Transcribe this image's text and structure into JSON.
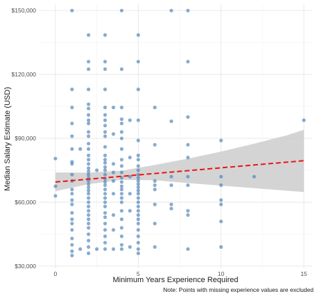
{
  "chart_data": {
    "type": "scatter",
    "title": "",
    "xlabel": "Minimum Years Experience Required",
    "ylabel": "Median Salary Estimate (USD)",
    "note": "Note: Points with missing experience values are excluded",
    "xlim": [
      -1,
      15.5
    ],
    "ylim": [
      29000,
      153000
    ],
    "x_ticks": [
      0,
      5,
      10,
      15
    ],
    "x_tick_labels": [
      "0",
      "5",
      "10",
      "15"
    ],
    "y_ticks": [
      30000,
      60000,
      90000,
      120000,
      150000
    ],
    "y_tick_labels": [
      "$30,000",
      "$60,000",
      "$90,000",
      "$120,000",
      "$150,000"
    ],
    "grid": true,
    "point_color": "#4a7fb5",
    "trend_color": "#ee1111",
    "band_color": "#cccccc",
    "trend": {
      "x": [
        0,
        15
      ],
      "y": [
        69500,
        79500
      ]
    },
    "confidence_band": {
      "x": [
        0,
        2,
        4,
        6,
        8,
        10,
        12,
        14,
        15
      ],
      "lower": [
        65200,
        68500,
        70500,
        70300,
        69000,
        67800,
        66600,
        65400,
        64800
      ],
      "upper": [
        74000,
        73900,
        74800,
        77500,
        80500,
        83800,
        87500,
        91500,
        94000
      ]
    },
    "points": [
      {
        "x": 0,
        "y": 80500
      },
      {
        "x": 0,
        "y": 67500
      },
      {
        "x": 0,
        "y": 63000
      },
      {
        "x": 1,
        "y": 150000
      },
      {
        "x": 1,
        "y": 113000
      },
      {
        "x": 1,
        "y": 104500
      },
      {
        "x": 1,
        "y": 97000
      },
      {
        "x": 1,
        "y": 91000
      },
      {
        "x": 1,
        "y": 85000
      },
      {
        "x": 1,
        "y": 79000
      },
      {
        "x": 1,
        "y": 78000
      },
      {
        "x": 1,
        "y": 73000
      },
      {
        "x": 1,
        "y": 70000
      },
      {
        "x": 1,
        "y": 66000
      },
      {
        "x": 1,
        "y": 64000
      },
      {
        "x": 1,
        "y": 61000
      },
      {
        "x": 1,
        "y": 59000
      },
      {
        "x": 1,
        "y": 55000
      },
      {
        "x": 1,
        "y": 52000
      },
      {
        "x": 1,
        "y": 50000
      },
      {
        "x": 1,
        "y": 47000
      },
      {
        "x": 1,
        "y": 43000
      },
      {
        "x": 1,
        "y": 40000
      },
      {
        "x": 1,
        "y": 37000
      },
      {
        "x": 1,
        "y": 35000
      },
      {
        "x": 1.5,
        "y": 85000
      },
      {
        "x": 1.5,
        "y": 38000
      },
      {
        "x": 2,
        "y": 138500
      },
      {
        "x": 2,
        "y": 126000
      },
      {
        "x": 2,
        "y": 122500
      },
      {
        "x": 2,
        "y": 113000
      },
      {
        "x": 2,
        "y": 106000
      },
      {
        "x": 2,
        "y": 104000
      },
      {
        "x": 2,
        "y": 101000
      },
      {
        "x": 2,
        "y": 98500
      },
      {
        "x": 2,
        "y": 97000
      },
      {
        "x": 2,
        "y": 93000
      },
      {
        "x": 2,
        "y": 91000
      },
      {
        "x": 2,
        "y": 87500
      },
      {
        "x": 2,
        "y": 85000
      },
      {
        "x": 2,
        "y": 82000
      },
      {
        "x": 2,
        "y": 80000
      },
      {
        "x": 2,
        "y": 78000
      },
      {
        "x": 2,
        "y": 76000
      },
      {
        "x": 2,
        "y": 74500
      },
      {
        "x": 2,
        "y": 73000
      },
      {
        "x": 2,
        "y": 71500
      },
      {
        "x": 2,
        "y": 70000
      },
      {
        "x": 2,
        "y": 68500
      },
      {
        "x": 2,
        "y": 67000
      },
      {
        "x": 2,
        "y": 65500
      },
      {
        "x": 2,
        "y": 64000
      },
      {
        "x": 2,
        "y": 62000
      },
      {
        "x": 2,
        "y": 60000
      },
      {
        "x": 2,
        "y": 58000
      },
      {
        "x": 2,
        "y": 56000
      },
      {
        "x": 2,
        "y": 54000
      },
      {
        "x": 2,
        "y": 52000
      },
      {
        "x": 2,
        "y": 50000
      },
      {
        "x": 2,
        "y": 48000
      },
      {
        "x": 2,
        "y": 45000
      },
      {
        "x": 2,
        "y": 42000
      },
      {
        "x": 2,
        "y": 39000
      },
      {
        "x": 2,
        "y": 36000
      },
      {
        "x": 2.5,
        "y": 75000
      },
      {
        "x": 2.5,
        "y": 38000
      },
      {
        "x": 3,
        "y": 138500
      },
      {
        "x": 3,
        "y": 126000
      },
      {
        "x": 3,
        "y": 122500
      },
      {
        "x": 3,
        "y": 113000
      },
      {
        "x": 3,
        "y": 104500
      },
      {
        "x": 3,
        "y": 101000
      },
      {
        "x": 3,
        "y": 98500
      },
      {
        "x": 3,
        "y": 96000
      },
      {
        "x": 3,
        "y": 93000
      },
      {
        "x": 3,
        "y": 91000
      },
      {
        "x": 3,
        "y": 86000
      },
      {
        "x": 3,
        "y": 82000
      },
      {
        "x": 3,
        "y": 80000
      },
      {
        "x": 3,
        "y": 78500
      },
      {
        "x": 3,
        "y": 76500
      },
      {
        "x": 3,
        "y": 75000
      },
      {
        "x": 3,
        "y": 73000
      },
      {
        "x": 3,
        "y": 71000
      },
      {
        "x": 3,
        "y": 69500
      },
      {
        "x": 3,
        "y": 68000
      },
      {
        "x": 3,
        "y": 66000
      },
      {
        "x": 3,
        "y": 64000
      },
      {
        "x": 3,
        "y": 62000
      },
      {
        "x": 3,
        "y": 60000
      },
      {
        "x": 3,
        "y": 58000
      },
      {
        "x": 3,
        "y": 55000
      },
      {
        "x": 3,
        "y": 53000
      },
      {
        "x": 3,
        "y": 50000
      },
      {
        "x": 3,
        "y": 47000
      },
      {
        "x": 3,
        "y": 44000
      },
      {
        "x": 3,
        "y": 41000
      },
      {
        "x": 3,
        "y": 38000
      },
      {
        "x": 3.5,
        "y": 104500
      },
      {
        "x": 3.5,
        "y": 92000
      },
      {
        "x": 3.5,
        "y": 78000
      },
      {
        "x": 3.5,
        "y": 74000
      },
      {
        "x": 3.5,
        "y": 70000
      },
      {
        "x": 3.5,
        "y": 64000
      },
      {
        "x": 3.5,
        "y": 54000
      },
      {
        "x": 3.5,
        "y": 47000
      },
      {
        "x": 3.5,
        "y": 38000
      },
      {
        "x": 4,
        "y": 150000
      },
      {
        "x": 4,
        "y": 122500
      },
      {
        "x": 4,
        "y": 104500
      },
      {
        "x": 4,
        "y": 99000
      },
      {
        "x": 4,
        "y": 97000
      },
      {
        "x": 4,
        "y": 93000
      },
      {
        "x": 4,
        "y": 90000
      },
      {
        "x": 4,
        "y": 85000
      },
      {
        "x": 4,
        "y": 80000
      },
      {
        "x": 4,
        "y": 77000
      },
      {
        "x": 4,
        "y": 74000
      },
      {
        "x": 4,
        "y": 71500
      },
      {
        "x": 4,
        "y": 69500
      },
      {
        "x": 4,
        "y": 67500
      },
      {
        "x": 4,
        "y": 66000
      },
      {
        "x": 4,
        "y": 64000
      },
      {
        "x": 4,
        "y": 62000
      },
      {
        "x": 4,
        "y": 60000
      },
      {
        "x": 4,
        "y": 56000
      },
      {
        "x": 4,
        "y": 52000
      },
      {
        "x": 4,
        "y": 48000
      },
      {
        "x": 4,
        "y": 44000
      },
      {
        "x": 4,
        "y": 40000
      },
      {
        "x": 4,
        "y": 38000
      },
      {
        "x": 4.5,
        "y": 98500
      },
      {
        "x": 4.5,
        "y": 81000
      },
      {
        "x": 4.5,
        "y": 72000
      },
      {
        "x": 4.5,
        "y": 64000
      },
      {
        "x": 4.5,
        "y": 56000
      },
      {
        "x": 4.5,
        "y": 39000
      },
      {
        "x": 5,
        "y": 138500
      },
      {
        "x": 5,
        "y": 126000
      },
      {
        "x": 5,
        "y": 113000
      },
      {
        "x": 5,
        "y": 98500
      },
      {
        "x": 5,
        "y": 89000
      },
      {
        "x": 5,
        "y": 82000
      },
      {
        "x": 5,
        "y": 80000
      },
      {
        "x": 5,
        "y": 77000
      },
      {
        "x": 5,
        "y": 75000
      },
      {
        "x": 5,
        "y": 73000
      },
      {
        "x": 5,
        "y": 71500
      },
      {
        "x": 5,
        "y": 70000
      },
      {
        "x": 5,
        "y": 68500
      },
      {
        "x": 5,
        "y": 67000
      },
      {
        "x": 5,
        "y": 65500
      },
      {
        "x": 5,
        "y": 64000
      },
      {
        "x": 5,
        "y": 62000
      },
      {
        "x": 5,
        "y": 60000
      },
      {
        "x": 5,
        "y": 58000
      },
      {
        "x": 5,
        "y": 56000
      },
      {
        "x": 5,
        "y": 54000
      },
      {
        "x": 5,
        "y": 52000
      },
      {
        "x": 5,
        "y": 50000
      },
      {
        "x": 5,
        "y": 47000
      },
      {
        "x": 5,
        "y": 44000
      },
      {
        "x": 5,
        "y": 41000
      },
      {
        "x": 5,
        "y": 38000
      },
      {
        "x": 5,
        "y": 36000
      },
      {
        "x": 6,
        "y": 104500
      },
      {
        "x": 6,
        "y": 87000
      },
      {
        "x": 6,
        "y": 70000
      },
      {
        "x": 6,
        "y": 68000
      },
      {
        "x": 6,
        "y": 66000
      },
      {
        "x": 6,
        "y": 59000
      },
      {
        "x": 6,
        "y": 50000
      },
      {
        "x": 6,
        "y": 39000
      },
      {
        "x": 7,
        "y": 150000
      },
      {
        "x": 7,
        "y": 98000
      },
      {
        "x": 7,
        "y": 72000
      },
      {
        "x": 7,
        "y": 68000
      },
      {
        "x": 7,
        "y": 59000
      },
      {
        "x": 7,
        "y": 57000
      },
      {
        "x": 8,
        "y": 150000
      },
      {
        "x": 8,
        "y": 126000
      },
      {
        "x": 8,
        "y": 100000
      },
      {
        "x": 8,
        "y": 87000
      },
      {
        "x": 8,
        "y": 81000
      },
      {
        "x": 8,
        "y": 72000
      },
      {
        "x": 8,
        "y": 68000
      },
      {
        "x": 8,
        "y": 56000
      },
      {
        "x": 8,
        "y": 54000
      },
      {
        "x": 8,
        "y": 38000
      },
      {
        "x": 10,
        "y": 89000
      },
      {
        "x": 10,
        "y": 72000
      },
      {
        "x": 10,
        "y": 68000
      },
      {
        "x": 10,
        "y": 61000
      },
      {
        "x": 10,
        "y": 59000
      },
      {
        "x": 10,
        "y": 51000
      },
      {
        "x": 10,
        "y": 39000
      },
      {
        "x": 12,
        "y": 72000
      },
      {
        "x": 15,
        "y": 98500
      }
    ]
  }
}
